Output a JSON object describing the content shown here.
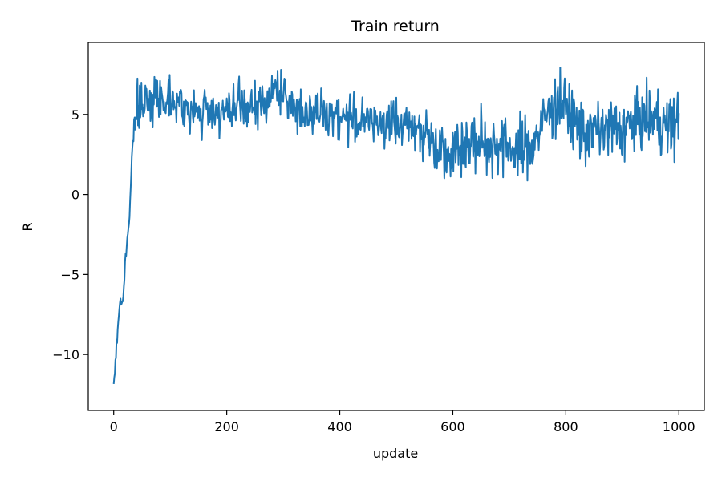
{
  "chart_data": {
    "type": "line",
    "title": "Train return",
    "xlabel": "update",
    "ylabel": "R",
    "xlim": [
      -45,
      1045
    ],
    "ylim": [
      -13.5,
      9.5
    ],
    "xticks": [
      0,
      200,
      400,
      600,
      800,
      1000
    ],
    "xtick_labels": [
      "0",
      "200",
      "400",
      "600",
      "800",
      "1000"
    ],
    "yticks": [
      -10,
      -5,
      0,
      5
    ],
    "ytick_labels": [
      "−10",
      "−5",
      "0",
      "5"
    ],
    "grid": false,
    "line_color": "#1f77b4",
    "series": [
      {
        "x": [
          0,
          2,
          5,
          8,
          10,
          12,
          15,
          18,
          20,
          22,
          25,
          28,
          30,
          32,
          35,
          38,
          40,
          42,
          45,
          48,
          50,
          60,
          70,
          80,
          90,
          100,
          120,
          140,
          160,
          180,
          200,
          220,
          240,
          260,
          280,
          290,
          300,
          320,
          340,
          360,
          380,
          400,
          420,
          440,
          460,
          480,
          500,
          520,
          540,
          560,
          580,
          600,
          620,
          640,
          660,
          680,
          700,
          720,
          740,
          760,
          780,
          800,
          820,
          840,
          860,
          880,
          900,
          920,
          940,
          960,
          980,
          1000
        ],
        "y": [
          -12,
          -11,
          -9.5,
          -8,
          -7,
          -6.6,
          -6.8,
          -6,
          -4.5,
          -3.5,
          -2.5,
          -1.5,
          0.5,
          2.5,
          4.2,
          5,
          4.5,
          5.2,
          5.5,
          5.8,
          5.3,
          5.8,
          6,
          6.2,
          5.8,
          6.3,
          5.5,
          5,
          5.2,
          5.3,
          5,
          5.5,
          5.3,
          5.6,
          6.2,
          6.8,
          6,
          5.5,
          5.2,
          5,
          5.1,
          4.9,
          4.8,
          4.6,
          4.5,
          4.7,
          4.2,
          4.4,
          4.3,
          3.3,
          3,
          2.8,
          3.1,
          3.2,
          3.1,
          3.3,
          3,
          2.6,
          3.1,
          4.5,
          5.8,
          5.5,
          4.2,
          3.8,
          4,
          4.1,
          4,
          4.5,
          4.7,
          4.8,
          4.1,
          4.6
        ],
        "noise_seed": 7
      }
    ]
  }
}
